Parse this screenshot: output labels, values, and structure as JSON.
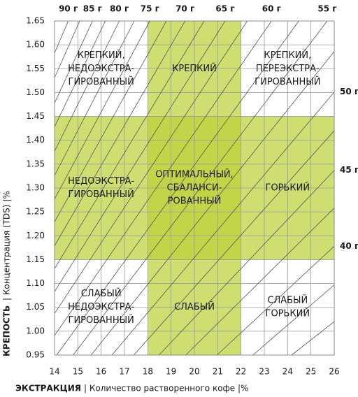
{
  "chart_data": {
    "type": "brewing_control",
    "x_label_bold": "ЭКСТРАКЦИЯ",
    "x_label_rest": "| Количество растворенного кофе  |%",
    "y_label_bold": "КРЕПОСТЬ",
    "y_label_rest": "| Концентрация (TDS) |%",
    "xlim": [
      14,
      26
    ],
    "xticks": [
      14,
      15,
      16,
      17,
      18,
      19,
      20,
      21,
      22,
      23,
      24,
      25,
      26
    ],
    "ylim": [
      0.95,
      1.65
    ],
    "yticks": [
      0.95,
      {
        "value": 1,
        "label": "1.00"
      },
      1.05,
      {
        "value": 1.1,
        "label": "1.10"
      },
      1.15,
      {
        "value": 1.2,
        "label": "1.20"
      },
      1.25,
      {
        "value": 1.3,
        "label": "1.30"
      },
      1.35,
      {
        "value": 1.4,
        "label": "1.40"
      },
      1.45,
      {
        "value": 1.5,
        "label": "1.50"
      },
      1.55,
      {
        "value": 1.6,
        "label": "1.60"
      },
      1.65
    ],
    "grid": true,
    "zone_color": "#bcd13a",
    "ideal_extraction": [
      18,
      22
    ],
    "ideal_strength": [
      1.15,
      1.45
    ],
    "regions": [
      [
        "КРЕПКИЙ,",
        "НЕДОЭКСТРА-",
        "ГИРОВАННЫЙ"
      ],
      [
        "КРЕПКИЙ"
      ],
      [
        "КРЕПКИЙ,",
        "ПЕРЕЭКСТРА-",
        "ГИРОВАННЫЙ"
      ],
      [
        "НЕДОЭКСТРА-",
        "ГИРОВАННЫЙ"
      ],
      [
        "ОПТИМАЛЬНЫЙ,",
        "СБАЛАНСИ-",
        "РОВАННЫЙ"
      ],
      [
        "ГОРЬКИЙ"
      ],
      [
        "СЛАБЫЙ",
        "НЕДОЭКСТРА-",
        "ГИРОВАННЫЙ"
      ],
      [
        "СЛАБЫЙ"
      ],
      [
        "СЛАБЫЙ",
        "ГОРЬКИЙ"
      ]
    ],
    "ratio_lines": [
      {
        "label": "90 г",
        "x": [
          14,
          14.59
        ],
        "y": [
          1.583,
          1.65
        ]
      },
      {
        "label": null,
        "x": [
          14,
          15.08
        ],
        "y": [
          1.531,
          1.65
        ]
      },
      {
        "label": "85 г",
        "x": [
          14,
          15.63
        ],
        "y": [
          1.478,
          1.65
        ]
      },
      {
        "label": null,
        "x": [
          14,
          16.18
        ],
        "y": [
          1.428,
          1.65
        ]
      },
      {
        "label": "80 г",
        "x": [
          14,
          16.78
        ],
        "y": [
          1.377,
          1.65
        ]
      },
      {
        "label": null,
        "x": [
          14,
          17.42
        ],
        "y": [
          1.326,
          1.65
        ]
      },
      {
        "label": "75 г",
        "x": [
          14,
          18.09
        ],
        "y": [
          1.277,
          1.65
        ]
      },
      {
        "label": null,
        "x": [
          14,
          18.8
        ],
        "y": [
          1.229,
          1.65
        ]
      },
      {
        "label": "70 г",
        "x": [
          14,
          19.6
        ],
        "y": [
          1.179,
          1.65
        ]
      },
      {
        "label": null,
        "x": [
          14,
          20.42
        ],
        "y": [
          1.131,
          1.65
        ]
      },
      {
        "label": "65 г",
        "x": [
          14,
          21.32
        ],
        "y": [
          1.083,
          1.65
        ]
      },
      {
        "label": null,
        "x": [
          14,
          22.27
        ],
        "y": [
          1.037,
          1.65
        ]
      },
      {
        "label": "60 г",
        "x": [
          14,
          23.31
        ],
        "y": [
          0.991,
          1.65
        ]
      },
      {
        "label": null,
        "x": [
          14.09,
          24.48
        ],
        "y": [
          0.95,
          1.65
        ]
      },
      {
        "label": "55 г",
        "x": [
          14.8,
          25.7
        ],
        "y": [
          0.95,
          1.65
        ]
      },
      {
        "label": null,
        "x": [
          15.57,
          26
        ],
        "y": [
          0.95,
          1.586
        ]
      },
      {
        "label": "50 г",
        "x": [
          16.46,
          26
        ],
        "y": [
          0.95,
          1.501
        ]
      },
      {
        "label": null,
        "x": [
          17.4,
          26
        ],
        "y": [
          0.95,
          1.42
        ]
      },
      {
        "label": "45 г",
        "x": [
          18.48,
          26
        ],
        "y": [
          0.95,
          1.337
        ]
      },
      {
        "label": null,
        "x": [
          19.63,
          26
        ],
        "y": [
          0.95,
          1.258
        ]
      },
      {
        "label": "40 г",
        "x": [
          20.97,
          26
        ],
        "y": [
          0.95,
          1.178
        ]
      },
      {
        "label": null,
        "x": [
          22.51,
          26
        ],
        "y": [
          0.95,
          1.097
        ]
      },
      {
        "label": null,
        "x": [
          24.17,
          26
        ],
        "y": [
          0.95,
          1.02
        ]
      }
    ]
  }
}
